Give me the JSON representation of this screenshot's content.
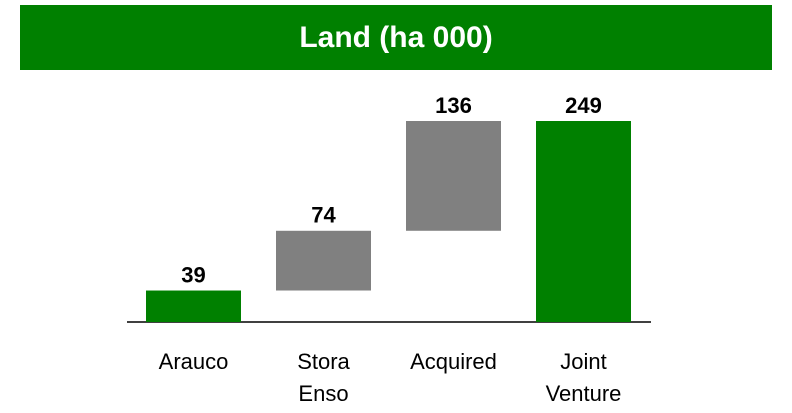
{
  "chart_data": {
    "type": "waterfall",
    "title": "Land (ha 000)",
    "categories": [
      "Arauco",
      "Stora Enso",
      "Acquired",
      "Joint Venture"
    ],
    "values": [
      39,
      74,
      136,
      249
    ],
    "colors": [
      "#008000",
      "#808080",
      "#808080",
      "#008000"
    ]
  }
}
